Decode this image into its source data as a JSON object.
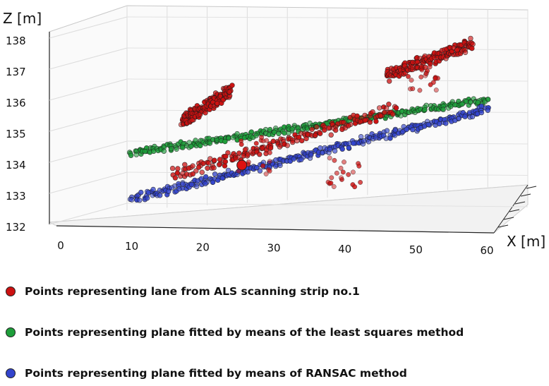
{
  "chart_data": {
    "type": "scatter",
    "projection": "3d",
    "xlabel": "X [m]",
    "ylabel": "",
    "zlabel": "Z [m]",
    "x_ticks": [
      "0",
      "10",
      "20",
      "30",
      "40",
      "50",
      "60"
    ],
    "z_ticks": [
      "132",
      "133",
      "134",
      "135",
      "136",
      "137",
      "138"
    ],
    "xlim": [
      0,
      60
    ],
    "zlim": [
      132,
      138
    ],
    "grid": true,
    "series": [
      {
        "name": "Points representing lane from ALS scanning strip no.1",
        "color": "#cc1111",
        "segments": [
          {
            "x": [
              17,
              24
            ],
            "z": [
              135.4,
              136.4
            ]
          },
          {
            "x": [
              16,
              47
            ],
            "z": [
              133.7,
              135.8
            ]
          },
          {
            "x": [
              46,
              58
            ],
            "z": [
              136.9,
              137.9
            ]
          }
        ],
        "highlight_point": {
          "x": 25.5,
          "z": 134.0
        }
      },
      {
        "name": "Points representing plane fitted by means of the least squares method",
        "color": "#1e9e3a",
        "segments": [
          {
            "x": [
              10,
              60
            ],
            "z": [
              134.4,
              136.1
            ]
          }
        ]
      },
      {
        "name": "Points representing plane fitted by means of RANSAC method",
        "color": "#3344cc",
        "segments": [
          {
            "x": [
              10,
              60
            ],
            "z": [
              132.9,
              135.8
            ]
          }
        ]
      }
    ]
  }
}
